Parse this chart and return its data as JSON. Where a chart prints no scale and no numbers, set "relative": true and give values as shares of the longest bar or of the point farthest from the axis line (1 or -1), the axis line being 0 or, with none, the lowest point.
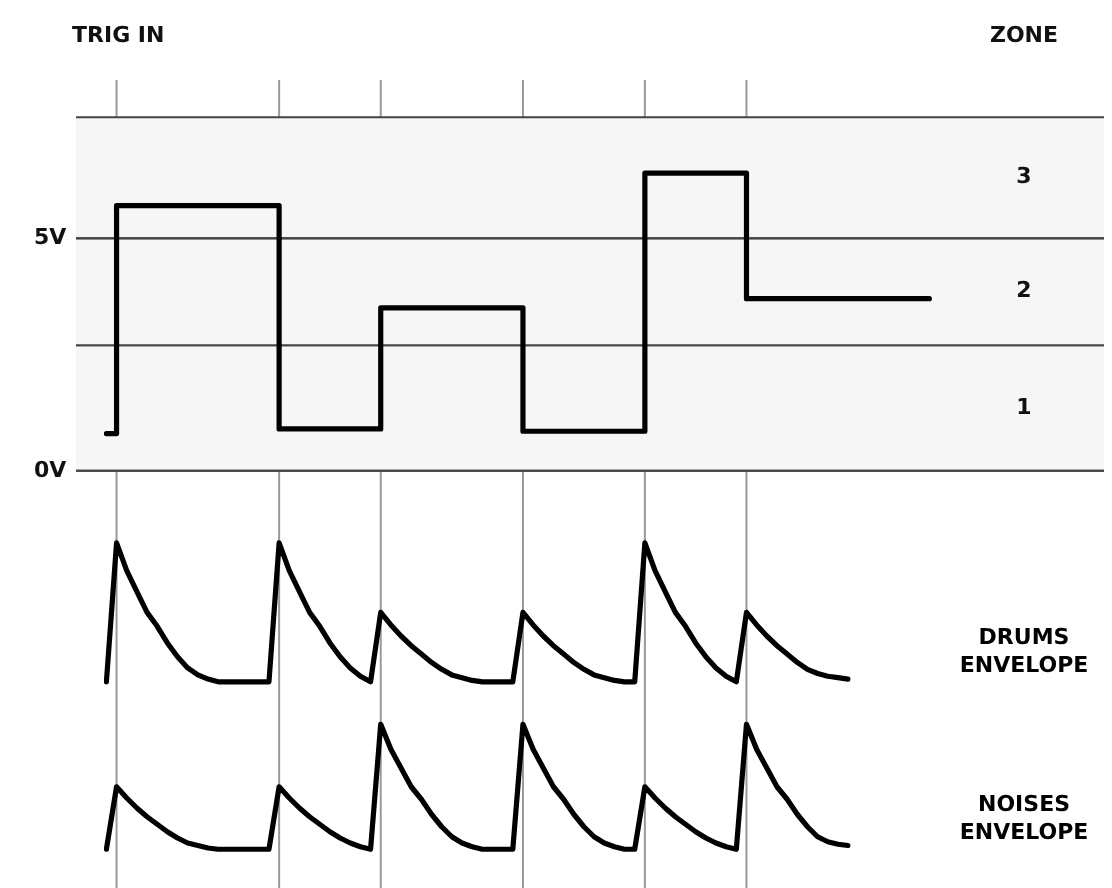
{
  "chart_data": [
    {
      "type": "step",
      "title": "TRIG IN",
      "annotations": [
        "ZONE"
      ],
      "categories": [
        null,
        null,
        null,
        null,
        null,
        null,
        null,
        null,
        null,
        null,
        null,
        null,
        null,
        null,
        null,
        null,
        null,
        null,
        null,
        null,
        null,
        null,
        null,
        null,
        null,
        null,
        null,
        null,
        null,
        null,
        null,
        null,
        null,
        null,
        null,
        null,
        null,
        null,
        null,
        null,
        null,
        null,
        null,
        null,
        null,
        null,
        null,
        null,
        null,
        null,
        null,
        null,
        null,
        null,
        null,
        null,
        null,
        null,
        null,
        null,
        null,
        null,
        null,
        null,
        null,
        null,
        null,
        null,
        null,
        null,
        null,
        null,
        null,
        null,
        null,
        null,
        null,
        null,
        null,
        null,
        null,
        null
      ],
      "values": [
        0.8,
        5.7,
        5.7,
        5.7,
        5.7,
        5.7,
        5.7,
        5.7,
        5.7,
        5.7,
        5.7,
        5.7,
        5.7,
        5.7,
        5.7,
        5.7,
        5.7,
        0.9,
        0.9,
        0.9,
        0.9,
        0.9,
        0.9,
        0.9,
        0.9,
        0.9,
        0.9,
        3.5,
        3.5,
        3.5,
        3.5,
        3.5,
        3.5,
        3.5,
        3.5,
        3.5,
        3.5,
        3.5,
        3.5,
        3.5,
        3.5,
        0.85,
        0.85,
        0.85,
        0.85,
        0.85,
        0.85,
        0.85,
        0.85,
        0.85,
        0.85,
        0.85,
        0.85,
        6.4,
        6.4,
        6.4,
        6.4,
        6.4,
        6.4,
        6.4,
        6.4,
        6.4,
        6.4,
        3.7,
        3.7,
        3.7,
        3.7,
        3.7,
        3.7,
        3.7,
        3.7,
        3.7,
        3.7,
        3.7,
        3.7,
        3.7,
        3.7,
        3.7,
        3.7,
        3.7,
        3.7,
        3.7
      ],
      "color": "#000000",
      "ylim": [
        0,
        8.4
      ],
      "yticks": [
        {
          "value": 0,
          "label": "0V"
        },
        {
          "value": 5,
          "label": "5V"
        }
      ],
      "bands": [
        {
          "axis": "y",
          "from": 0,
          "to": 2.7,
          "label": "1",
          "color": "#f6f6f6"
        },
        {
          "axis": "y",
          "from": 2.7,
          "to": 5,
          "label": "2",
          "color": "#f6f6f6"
        },
        {
          "axis": "y",
          "from": 5,
          "to": 7.6,
          "label": "3",
          "color": "#f6f6f6"
        }
      ],
      "grid": true
    },
    {
      "type": "line",
      "relative": true,
      "categories": [
        null,
        null,
        null,
        null,
        null,
        null,
        null,
        null,
        null,
        null,
        null,
        null,
        null,
        null,
        null,
        null,
        null,
        null,
        null,
        null,
        null,
        null,
        null,
        null,
        null,
        null,
        null,
        null,
        null,
        null,
        null,
        null,
        null,
        null,
        null,
        null,
        null,
        null,
        null,
        null,
        null,
        null,
        null,
        null,
        null,
        null,
        null,
        null,
        null,
        null,
        null,
        null,
        null,
        null,
        null,
        null,
        null,
        null,
        null,
        null,
        null,
        null,
        null,
        null,
        null,
        null,
        null,
        null,
        null,
        null,
        null,
        null,
        null,
        null
      ],
      "series": [
        {
          "name": "DRUMS ENVELOPE",
          "color": "#000000",
          "values": [
            0,
            1,
            0.8,
            0.65,
            0.5,
            0.4,
            0.28,
            0.18,
            0.1,
            0.05,
            0.02,
            0,
            0,
            0,
            0,
            0,
            0,
            1,
            0.8,
            0.65,
            0.5,
            0.4,
            0.28,
            0.18,
            0.1,
            0.04,
            0,
            0.5,
            0.41,
            0.33,
            0.26,
            0.2,
            0.14,
            0.09,
            0.05,
            0.03,
            0.01,
            0,
            0,
            0,
            0,
            0.5,
            0.41,
            0.33,
            0.26,
            0.2,
            0.14,
            0.09,
            0.05,
            0.03,
            0.01,
            0,
            0,
            1,
            0.8,
            0.65,
            0.5,
            0.4,
            0.28,
            0.18,
            0.1,
            0.04,
            0,
            0.5,
            0.41,
            0.33,
            0.26,
            0.2,
            0.14,
            0.09,
            0.06,
            0.04,
            0.03,
            0.02
          ]
        }
      ],
      "grid": "x",
      "tick_labels": false
    },
    {
      "type": "line",
      "relative": true,
      "categories": [
        null,
        null,
        null,
        null,
        null,
        null,
        null,
        null,
        null,
        null,
        null,
        null,
        null,
        null,
        null,
        null,
        null,
        null,
        null,
        null,
        null,
        null,
        null,
        null,
        null,
        null,
        null,
        null,
        null,
        null,
        null,
        null,
        null,
        null,
        null,
        null,
        null,
        null,
        null,
        null,
        null,
        null,
        null,
        null,
        null,
        null,
        null,
        null,
        null,
        null,
        null,
        null,
        null,
        null,
        null,
        null,
        null,
        null,
        null,
        null,
        null,
        null,
        null,
        null,
        null,
        null,
        null,
        null,
        null,
        null,
        null,
        null,
        null,
        null
      ],
      "series": [
        {
          "name": "NOISES ENVELOPE",
          "color": "#000000",
          "values": [
            0,
            0.5,
            0.41,
            0.33,
            0.26,
            0.2,
            0.14,
            0.09,
            0.05,
            0.03,
            0.01,
            0,
            0,
            0,
            0,
            0,
            0,
            0.5,
            0.41,
            0.33,
            0.26,
            0.2,
            0.14,
            0.09,
            0.05,
            0.02,
            0,
            1,
            0.8,
            0.65,
            0.5,
            0.4,
            0.28,
            0.18,
            0.1,
            0.05,
            0.02,
            0,
            0,
            0,
            0,
            1,
            0.8,
            0.65,
            0.5,
            0.4,
            0.28,
            0.18,
            0.1,
            0.05,
            0.02,
            0,
            0,
            0.5,
            0.41,
            0.33,
            0.26,
            0.2,
            0.14,
            0.09,
            0.05,
            0.02,
            0,
            1,
            0.8,
            0.65,
            0.5,
            0.4,
            0.28,
            0.18,
            0.1,
            0.06,
            0.04,
            0.03
          ]
        }
      ],
      "grid": "x",
      "tick_labels": false
    }
  ]
}
